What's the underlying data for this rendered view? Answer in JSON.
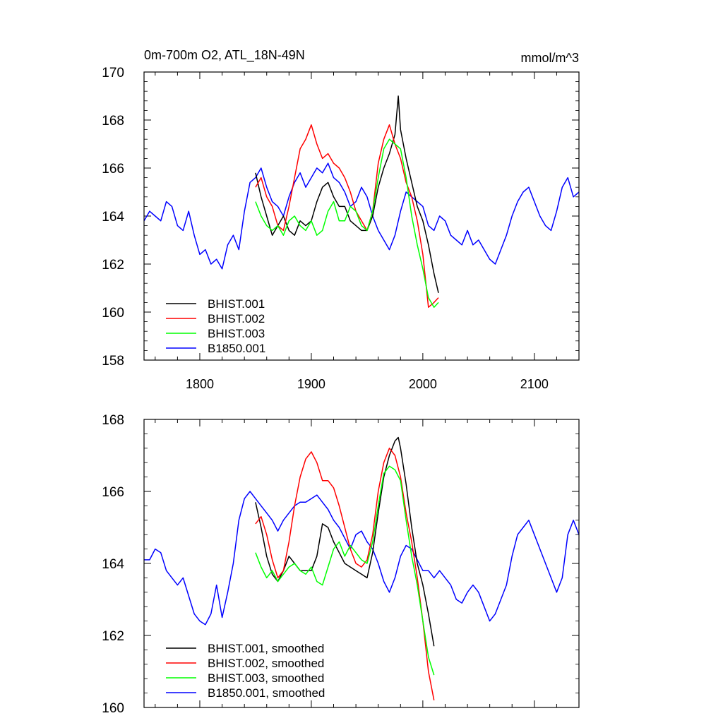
{
  "chart_data": [
    {
      "type": "line",
      "title": "0m-700m O2, ATL_18N-49N",
      "units_label": "mmol/m^3",
      "xlabel": "",
      "ylabel": "",
      "xlim": [
        1750,
        2140
      ],
      "ylim": [
        158,
        170
      ],
      "xticks": [
        1800,
        1900,
        2000,
        2100
      ],
      "xtick_labels": [
        "1800",
        "1900",
        "2000",
        "2100"
      ],
      "yticks": [
        158,
        160,
        162,
        164,
        166,
        168,
        170
      ],
      "ytick_labels": [
        "158",
        "160",
        "162",
        "164",
        "166",
        "168",
        "170"
      ],
      "legend_position": "bottom-left",
      "series": [
        {
          "name": "BHIST.001",
          "color": "#000000",
          "x": [
            1850,
            1855,
            1860,
            1865,
            1870,
            1875,
            1880,
            1885,
            1890,
            1895,
            1900,
            1905,
            1910,
            1915,
            1920,
            1925,
            1930,
            1935,
            1940,
            1945,
            1950,
            1955,
            1960,
            1965,
            1970,
            1975,
            1978,
            1980,
            1985,
            1990,
            1995,
            2000,
            2005,
            2010,
            2014
          ],
          "values": [
            165.8,
            164.8,
            164.0,
            163.2,
            163.6,
            164.0,
            163.4,
            163.2,
            163.8,
            163.6,
            163.8,
            164.6,
            165.2,
            165.4,
            164.8,
            164.4,
            164.4,
            163.8,
            163.6,
            163.4,
            163.4,
            164.0,
            165.2,
            166.0,
            166.6,
            167.4,
            169.0,
            167.6,
            166.4,
            165.4,
            164.4,
            163.8,
            162.8,
            161.6,
            160.8
          ]
        },
        {
          "name": "BHIST.002",
          "color": "#ff0000",
          "x": [
            1850,
            1855,
            1860,
            1865,
            1870,
            1875,
            1880,
            1885,
            1890,
            1895,
            1900,
            1905,
            1910,
            1915,
            1920,
            1925,
            1930,
            1935,
            1940,
            1945,
            1950,
            1955,
            1960,
            1965,
            1970,
            1975,
            1980,
            1985,
            1990,
            1995,
            2000,
            2005,
            2010,
            2014
          ],
          "values": [
            165.2,
            165.6,
            164.8,
            164.4,
            163.6,
            163.4,
            164.4,
            165.6,
            166.8,
            167.2,
            167.8,
            167.0,
            166.4,
            166.6,
            166.2,
            166.0,
            165.6,
            165.0,
            164.2,
            163.8,
            163.4,
            164.2,
            166.2,
            167.2,
            167.8,
            167.0,
            166.4,
            165.4,
            164.8,
            163.8,
            162.4,
            160.2,
            160.4,
            160.6
          ]
        },
        {
          "name": "BHIST.003",
          "color": "#00ff00",
          "x": [
            1850,
            1855,
            1860,
            1865,
            1870,
            1875,
            1880,
            1885,
            1890,
            1895,
            1900,
            1905,
            1910,
            1915,
            1920,
            1925,
            1930,
            1935,
            1940,
            1945,
            1950,
            1955,
            1960,
            1965,
            1970,
            1975,
            1980,
            1985,
            1990,
            1995,
            2000,
            2005,
            2010,
            2014
          ],
          "values": [
            164.6,
            164.0,
            163.6,
            163.4,
            163.6,
            163.2,
            163.8,
            164.0,
            163.6,
            163.4,
            163.8,
            163.2,
            163.4,
            164.2,
            164.6,
            163.8,
            163.8,
            164.4,
            164.2,
            163.6,
            163.4,
            164.2,
            165.6,
            166.8,
            167.2,
            167.0,
            166.8,
            165.6,
            164.0,
            162.8,
            161.8,
            160.6,
            160.2,
            160.4
          ]
        },
        {
          "name": "B1850.001",
          "color": "#0000ff",
          "x": [
            1750,
            1755,
            1760,
            1765,
            1770,
            1775,
            1780,
            1785,
            1790,
            1795,
            1800,
            1805,
            1810,
            1815,
            1820,
            1825,
            1830,
            1835,
            1840,
            1845,
            1850,
            1855,
            1860,
            1865,
            1870,
            1875,
            1880,
            1885,
            1890,
            1895,
            1900,
            1905,
            1910,
            1915,
            1920,
            1925,
            1930,
            1935,
            1940,
            1945,
            1950,
            1955,
            1960,
            1965,
            1970,
            1975,
            1980,
            1985,
            1990,
            1995,
            2000,
            2005,
            2010,
            2015,
            2020,
            2025,
            2030,
            2035,
            2040,
            2045,
            2050,
            2055,
            2060,
            2065,
            2070,
            2075,
            2080,
            2085,
            2090,
            2095,
            2100,
            2105,
            2110,
            2115,
            2120,
            2125,
            2130,
            2135,
            2140
          ],
          "values": [
            163.8,
            164.2,
            164.0,
            163.8,
            164.6,
            164.4,
            163.6,
            163.4,
            164.2,
            163.2,
            162.4,
            162.6,
            162.0,
            162.2,
            161.8,
            162.8,
            163.2,
            162.6,
            164.2,
            165.4,
            165.6,
            166.0,
            165.2,
            164.6,
            164.4,
            164.0,
            164.8,
            165.4,
            165.8,
            165.2,
            165.6,
            166.0,
            165.8,
            166.2,
            165.6,
            165.4,
            165.0,
            164.4,
            164.6,
            165.2,
            164.8,
            164.0,
            163.4,
            163.0,
            162.6,
            163.2,
            164.2,
            165.0,
            164.8,
            164.6,
            164.4,
            163.6,
            163.4,
            164.0,
            163.8,
            163.2,
            163.0,
            162.8,
            163.4,
            162.8,
            163.0,
            162.6,
            162.2,
            162.0,
            162.6,
            163.2,
            164.0,
            164.6,
            165.0,
            165.2,
            164.6,
            164.0,
            163.6,
            163.4,
            164.2,
            165.2,
            165.6,
            164.8,
            165.0
          ]
        }
      ]
    },
    {
      "type": "line",
      "title": "",
      "xlabel": "",
      "ylabel": "",
      "xlim": [
        1750,
        2140
      ],
      "ylim": [
        160,
        168
      ],
      "xticks": [
        1800,
        1900,
        2000,
        2100
      ],
      "yticks": [
        160,
        162,
        164,
        166,
        168
      ],
      "ytick_labels": [
        "160",
        "162",
        "164",
        "166",
        "168"
      ],
      "legend_position": "bottom-left",
      "series": [
        {
          "name": "BHIST.001, smoothed",
          "color": "#000000",
          "x": [
            1850,
            1855,
            1860,
            1865,
            1870,
            1875,
            1880,
            1885,
            1890,
            1895,
            1900,
            1905,
            1910,
            1915,
            1920,
            1925,
            1930,
            1935,
            1940,
            1945,
            1950,
            1955,
            1960,
            1965,
            1970,
            1975,
            1978,
            1980,
            1985,
            1990,
            1995,
            2000,
            2005,
            2010
          ],
          "values": [
            165.7,
            165.0,
            164.2,
            163.7,
            163.5,
            163.8,
            164.2,
            164.0,
            163.8,
            163.8,
            163.8,
            164.2,
            165.1,
            165.0,
            164.6,
            164.3,
            164.0,
            163.9,
            163.8,
            163.7,
            163.6,
            164.3,
            165.4,
            166.4,
            167.0,
            167.4,
            167.5,
            167.2,
            166.2,
            165.0,
            164.0,
            163.4,
            162.6,
            161.7
          ]
        },
        {
          "name": "BHIST.002, smoothed",
          "color": "#ff0000",
          "x": [
            1850,
            1855,
            1860,
            1865,
            1870,
            1875,
            1880,
            1885,
            1890,
            1895,
            1900,
            1905,
            1910,
            1915,
            1920,
            1925,
            1930,
            1935,
            1940,
            1945,
            1950,
            1955,
            1960,
            1965,
            1970,
            1975,
            1980,
            1985,
            1990,
            1995,
            2000,
            2005,
            2010
          ],
          "values": [
            165.1,
            165.3,
            164.8,
            164.1,
            163.6,
            163.8,
            164.6,
            165.6,
            166.4,
            166.9,
            167.1,
            166.8,
            166.3,
            166.3,
            166.1,
            165.6,
            165.0,
            164.4,
            164.0,
            163.9,
            164.1,
            164.8,
            166.0,
            166.8,
            167.2,
            167.0,
            166.4,
            165.4,
            164.6,
            163.6,
            162.4,
            161.0,
            160.2
          ]
        },
        {
          "name": "BHIST.003, smoothed",
          "color": "#00ff00",
          "x": [
            1850,
            1855,
            1860,
            1865,
            1870,
            1875,
            1880,
            1885,
            1890,
            1895,
            1900,
            1905,
            1910,
            1915,
            1920,
            1925,
            1930,
            1935,
            1940,
            1945,
            1950,
            1955,
            1960,
            1965,
            1970,
            1975,
            1980,
            1985,
            1990,
            1995,
            2000,
            2005,
            2010
          ],
          "values": [
            164.3,
            163.9,
            163.6,
            163.8,
            163.5,
            163.7,
            163.9,
            164.0,
            163.8,
            163.7,
            163.9,
            163.5,
            163.4,
            163.9,
            164.4,
            164.6,
            164.2,
            164.5,
            164.3,
            164.1,
            164.0,
            164.6,
            165.6,
            166.5,
            166.7,
            166.6,
            166.3,
            165.2,
            164.2,
            163.4,
            162.4,
            161.4,
            160.9
          ]
        },
        {
          "name": "B1850.001, smoothed",
          "color": "#0000ff",
          "x": [
            1750,
            1755,
            1760,
            1765,
            1770,
            1775,
            1780,
            1785,
            1790,
            1795,
            1800,
            1805,
            1810,
            1815,
            1820,
            1825,
            1830,
            1835,
            1840,
            1845,
            1850,
            1855,
            1860,
            1865,
            1870,
            1875,
            1880,
            1885,
            1890,
            1895,
            1900,
            1905,
            1910,
            1915,
            1920,
            1925,
            1930,
            1935,
            1940,
            1945,
            1950,
            1955,
            1960,
            1965,
            1970,
            1975,
            1980,
            1985,
            1990,
            1995,
            2000,
            2005,
            2010,
            2015,
            2020,
            2025,
            2030,
            2035,
            2040,
            2045,
            2050,
            2055,
            2060,
            2065,
            2070,
            2075,
            2080,
            2085,
            2090,
            2095,
            2100,
            2105,
            2110,
            2115,
            2120,
            2125,
            2130,
            2135,
            2140
          ],
          "values": [
            164.1,
            164.1,
            164.4,
            164.3,
            163.8,
            163.6,
            163.4,
            163.6,
            163.1,
            162.6,
            162.4,
            162.3,
            162.6,
            163.4,
            162.5,
            163.2,
            164.0,
            165.2,
            165.8,
            166.0,
            165.8,
            165.6,
            165.4,
            165.2,
            164.9,
            165.2,
            165.4,
            165.6,
            165.7,
            165.7,
            165.8,
            165.9,
            165.7,
            165.5,
            165.2,
            165.0,
            164.7,
            164.4,
            164.8,
            164.9,
            164.6,
            164.4,
            164.0,
            163.5,
            163.2,
            163.6,
            164.2,
            164.5,
            164.4,
            164.1,
            163.8,
            163.8,
            163.6,
            163.8,
            163.6,
            163.4,
            163.0,
            162.9,
            163.2,
            163.4,
            163.2,
            162.8,
            162.4,
            162.6,
            163.0,
            163.4,
            164.2,
            164.8,
            165.0,
            165.2,
            164.8,
            164.4,
            164.0,
            163.6,
            163.2,
            163.6,
            164.8,
            165.2,
            164.8
          ]
        }
      ]
    }
  ]
}
